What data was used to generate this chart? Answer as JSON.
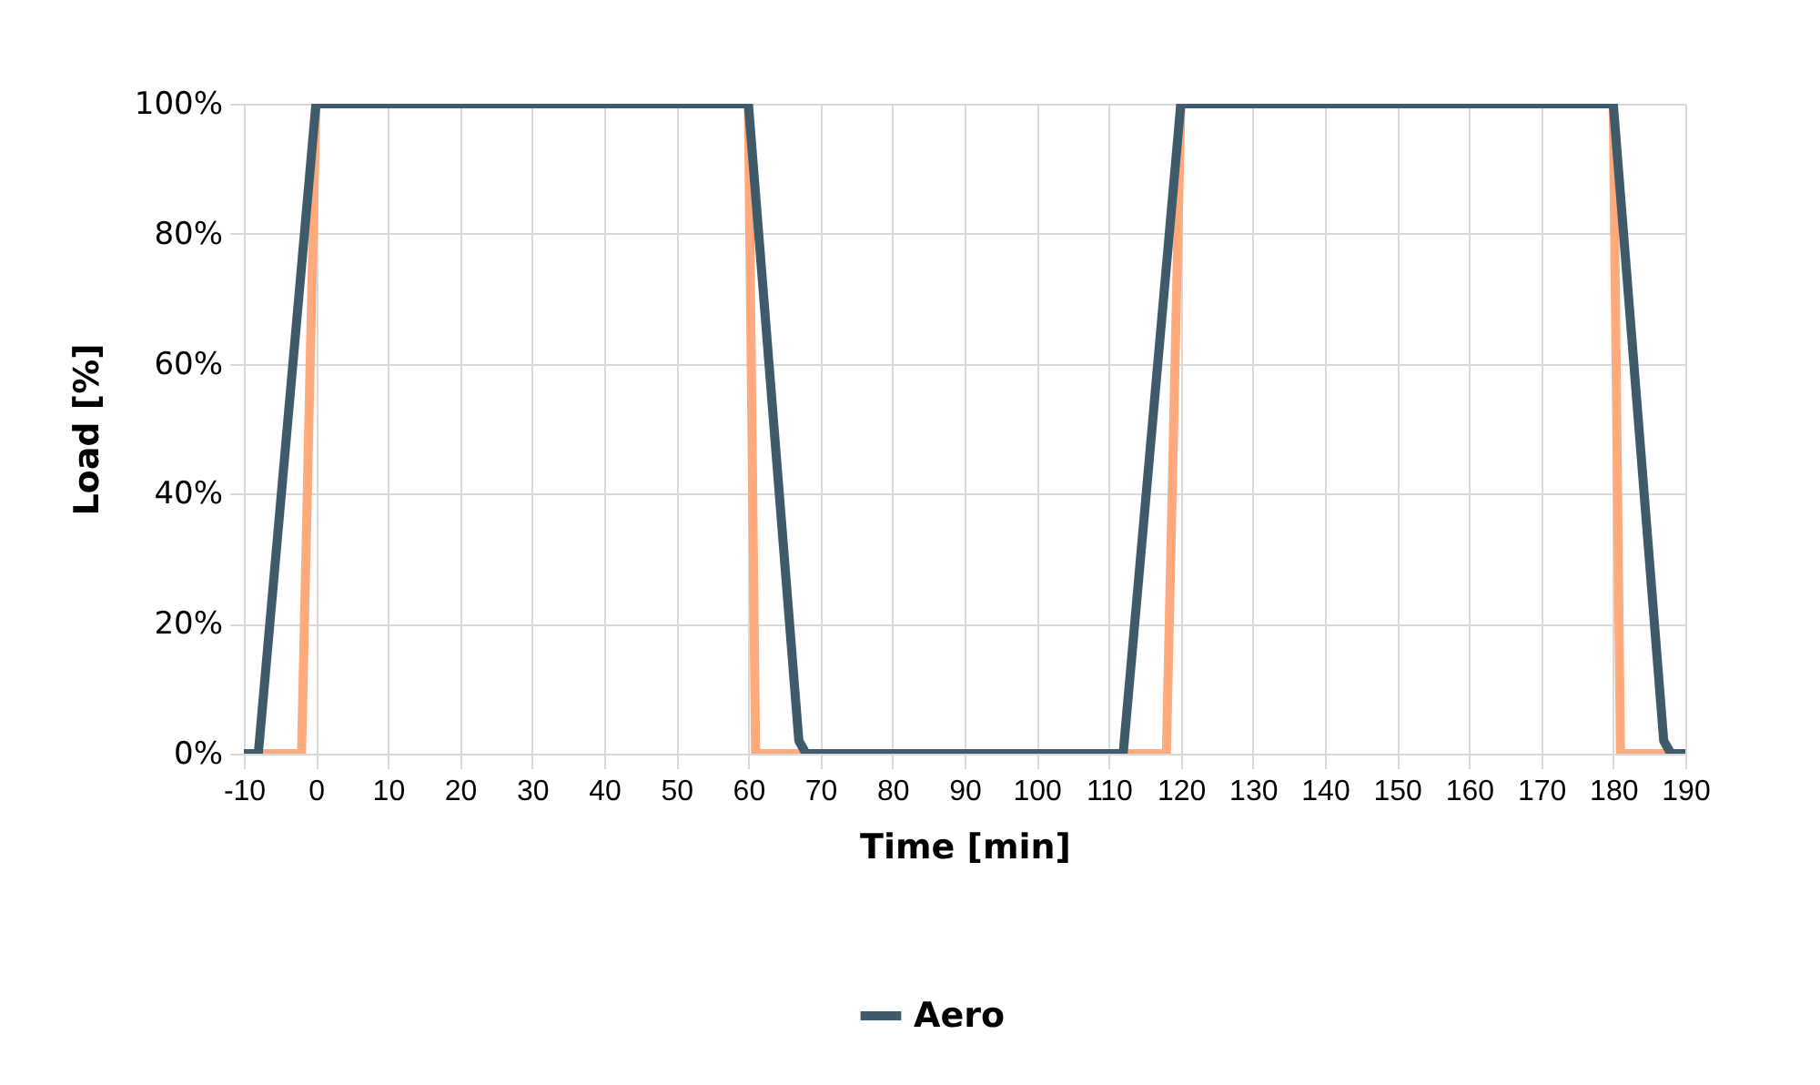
{
  "chart_data": {
    "type": "line",
    "xlabel": "Time [min]",
    "ylabel": "Load [%]",
    "xlim": [
      -10,
      190
    ],
    "xticks": [
      -10,
      0,
      10,
      20,
      30,
      40,
      50,
      60,
      70,
      80,
      90,
      100,
      110,
      120,
      130,
      140,
      150,
      160,
      170,
      180,
      190
    ],
    "ylim": [
      0,
      100
    ],
    "yticks": [
      {
        "value": 0,
        "label": "0%"
      },
      {
        "value": 20,
        "label": "20%"
      },
      {
        "value": 40,
        "label": "40%"
      },
      {
        "value": 60,
        "label": "60%"
      },
      {
        "value": 80,
        "label": "80%"
      },
      {
        "value": 100,
        "label": "100%"
      }
    ],
    "grid": true,
    "legend": "bottom",
    "marker": "none",
    "line_style": "solid",
    "series": [
      {
        "color": "#ffa97c",
        "x": [
          -10,
          -2,
          0,
          60,
          61,
          118,
          120,
          180,
          181,
          190
        ],
        "values": [
          0,
          0,
          100,
          100,
          0,
          0,
          100,
          100,
          0,
          0
        ]
      },
      {
        "name": "Aero",
        "color": "#3e5a6b",
        "x": [
          -10,
          -8,
          0,
          60,
          67,
          68,
          112,
          120,
          180,
          187,
          188,
          190
        ],
        "values": [
          0,
          0,
          100,
          100,
          2,
          0,
          0,
          100,
          100,
          2,
          0,
          0
        ]
      }
    ]
  }
}
